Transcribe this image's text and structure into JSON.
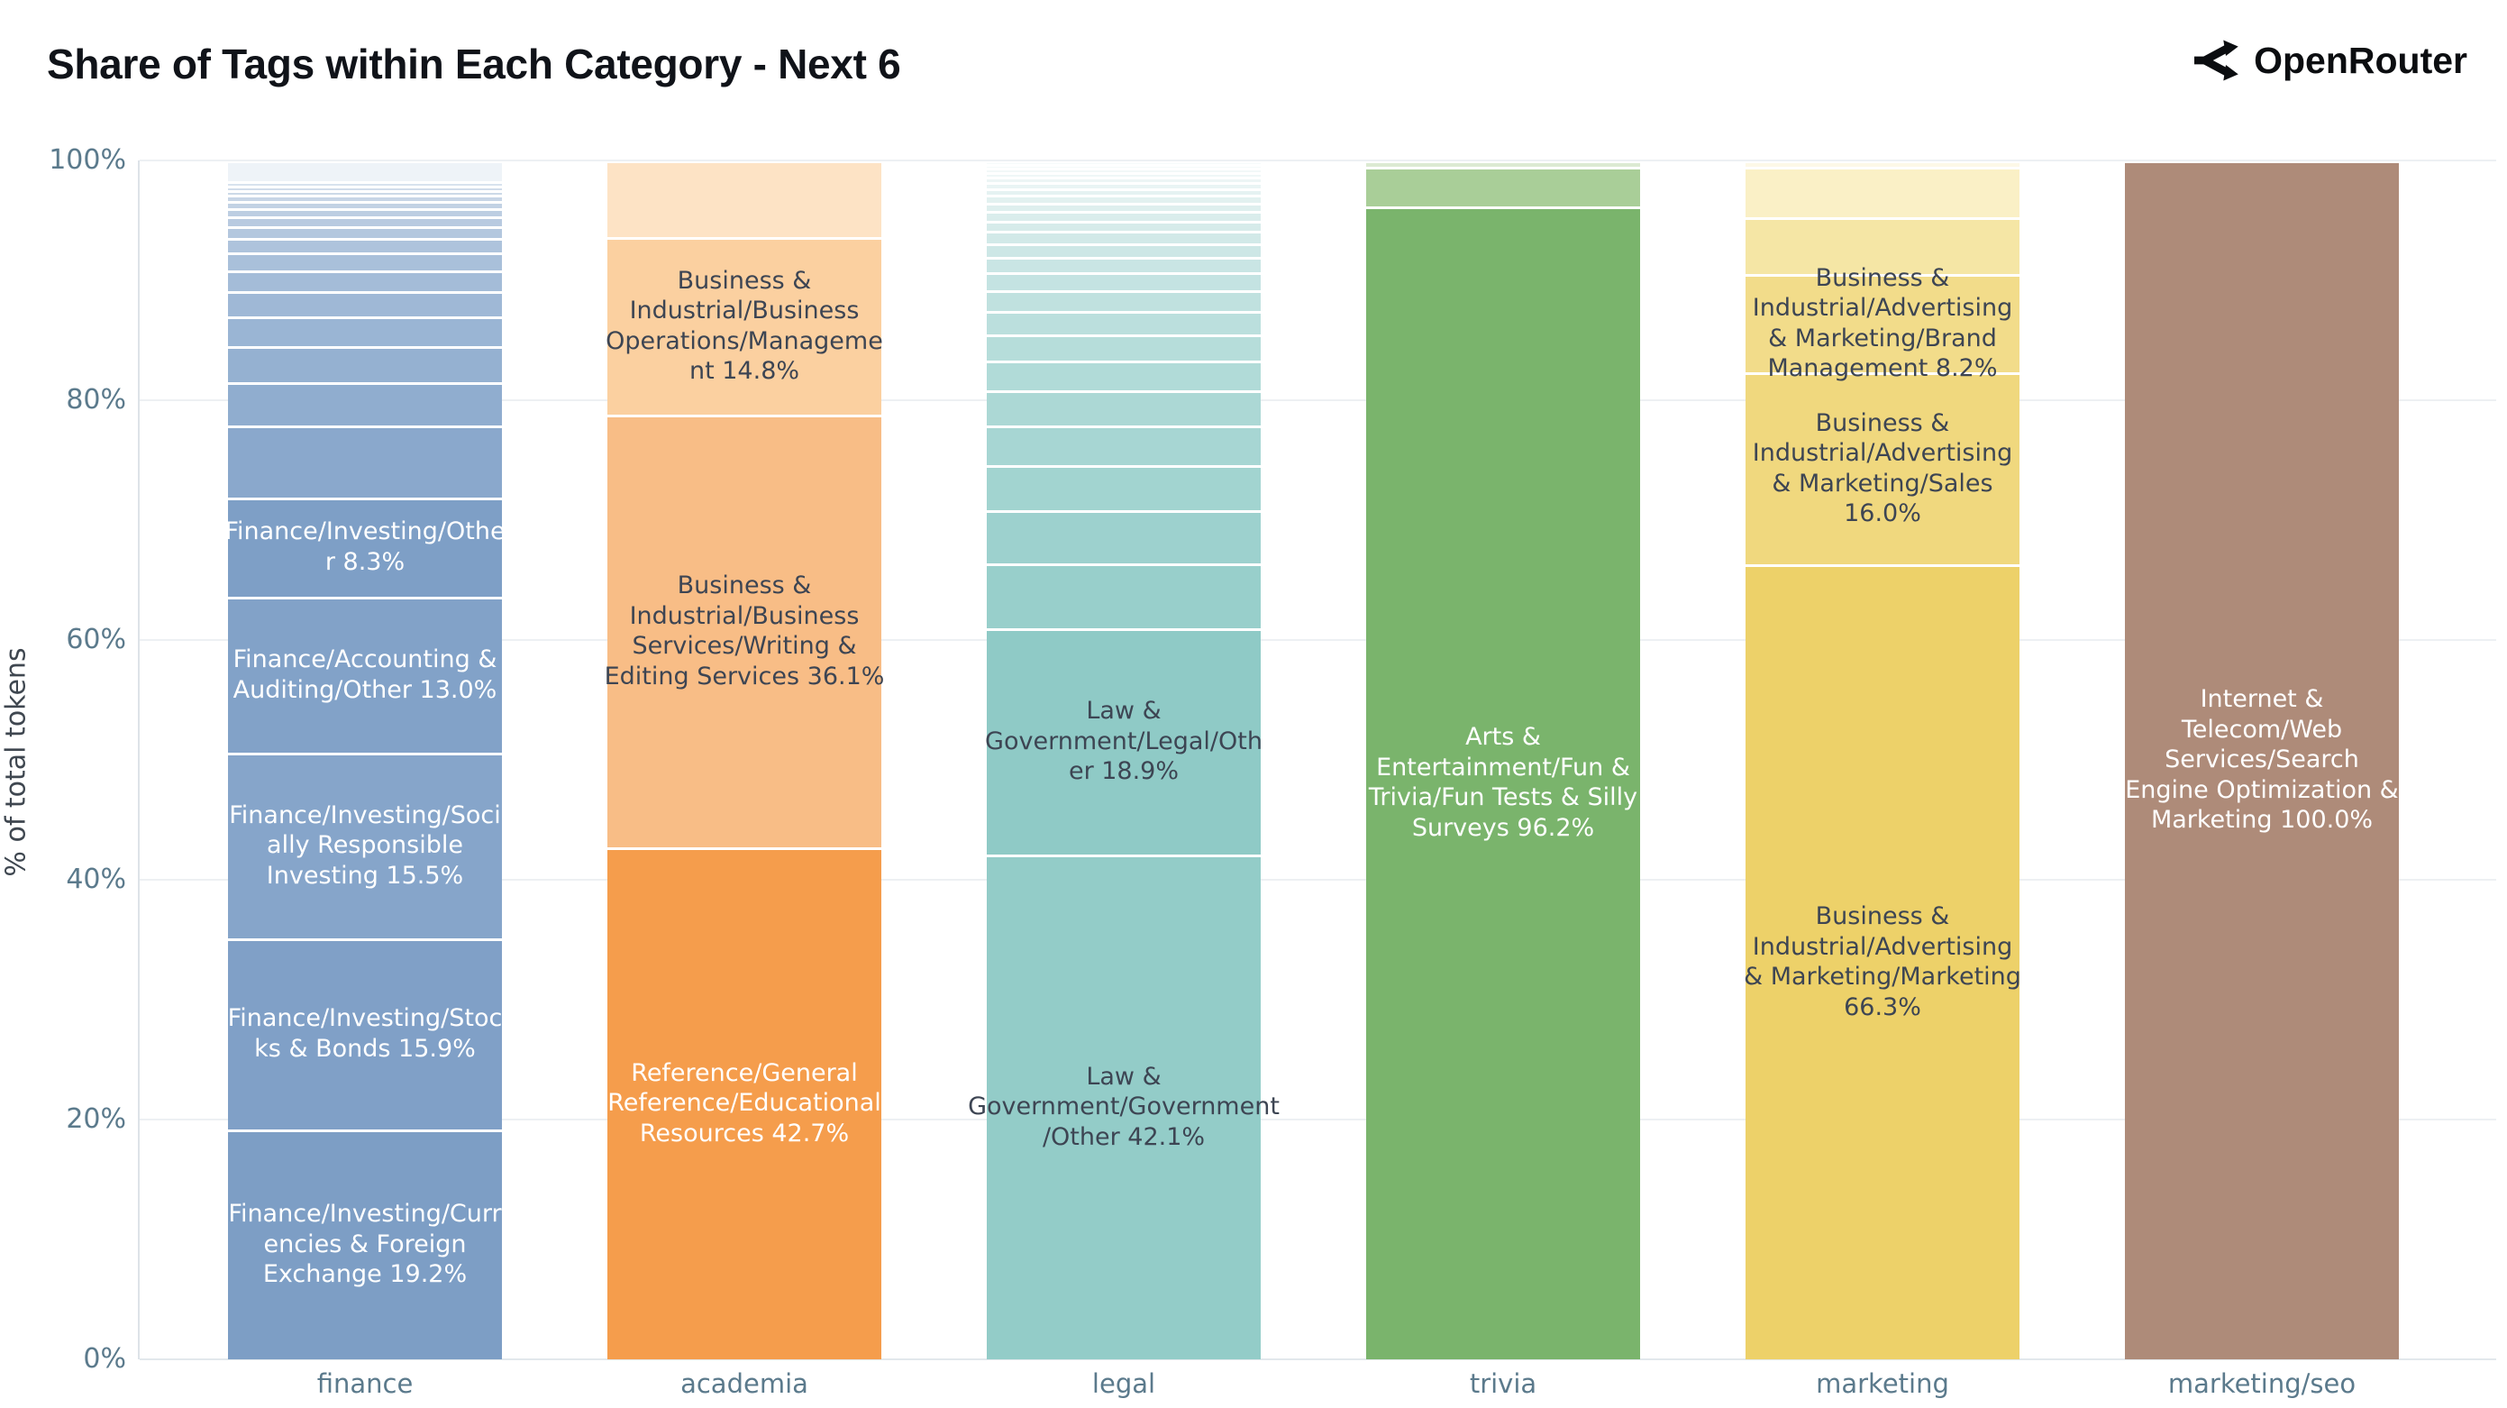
{
  "header": {
    "title": "Share of Tags within Each Category - Next 6",
    "brand": "OpenRouter"
  },
  "chart_data": {
    "type": "bar",
    "stacked": true,
    "title": "Share of Tags within Each Category - Next 6",
    "xlabel": "",
    "ylabel": "% of total tokens",
    "ylim": [
      0,
      100
    ],
    "grid": true,
    "yticks": [
      {
        "value": 0,
        "label": "0%"
      },
      {
        "value": 20,
        "label": "20%"
      },
      {
        "value": 40,
        "label": "40%"
      },
      {
        "value": 60,
        "label": "60%"
      },
      {
        "value": 80,
        "label": "80%"
      },
      {
        "value": 100,
        "label": "100%"
      }
    ],
    "categories": [
      "finance",
      "academia",
      "legal",
      "trivia",
      "marketing",
      "marketing/seo"
    ],
    "bars": [
      {
        "category": "finance",
        "segments": [
          {
            "label": "Finance/Investing/Currencies & Foreign Exchange 19.2%",
            "value": 19.2,
            "color": "#7d9ec5",
            "text_color": "#ffffff"
          },
          {
            "label": "Finance/Investing/Stocks & Bonds 15.9%",
            "value": 15.9,
            "color": "#80a0c7",
            "text_color": "#ffffff"
          },
          {
            "label": "Finance/Investing/Socially Responsible Investing 15.5%",
            "value": 15.5,
            "color": "#86a5ca",
            "text_color": "#ffffff"
          },
          {
            "label": "Finance/Accounting & Auditing/Other 13.0%",
            "value": 13.0,
            "color": "#82a2c8",
            "text_color": "#ffffff"
          },
          {
            "label": "Finance/Investing/Other 8.3%",
            "value": 8.3,
            "color": "#7e9fc6",
            "text_color": "#ffffff"
          },
          {
            "value": 6.0,
            "color": "#8aa8cc"
          },
          {
            "value": 3.6,
            "color": "#90adcf"
          },
          {
            "value": 3.0,
            "color": "#95b1d1"
          },
          {
            "value": 2.5,
            "color": "#9ab5d4"
          },
          {
            "value": 2.1,
            "color": "#9fb8d6"
          },
          {
            "value": 1.75,
            "color": "#a4bcd8"
          },
          {
            "value": 1.45,
            "color": "#a9c0da"
          },
          {
            "value": 1.2,
            "color": "#aec3dc"
          },
          {
            "value": 1.0,
            "color": "#b3c7de"
          },
          {
            "value": 0.85,
            "color": "#b8cae0"
          },
          {
            "value": 0.7,
            "color": "#bdcee2"
          },
          {
            "value": 0.6,
            "color": "#c2d2e4"
          },
          {
            "value": 0.5,
            "color": "#c7d5e6"
          },
          {
            "value": 0.4,
            "color": "#ccd9e8"
          },
          {
            "value": 0.35,
            "color": "#d1dcea"
          },
          {
            "value": 0.35,
            "color": "#d8e2ee"
          },
          {
            "value": 1.75,
            "color": "#eef3f8"
          }
        ]
      },
      {
        "category": "academia",
        "segments": [
          {
            "label": "Reference/General Reference/Educational Resources 42.7%",
            "value": 42.7,
            "color": "#f59d4c",
            "text_color": "#ffffff"
          },
          {
            "label": "Business & Industrial/Business Services/Writing & Editing Services 36.1%",
            "value": 36.1,
            "color": "#f8bd86",
            "text_color": "#3d4553"
          },
          {
            "label": "Business & Industrial/Business Operations/Management 14.8%",
            "value": 14.8,
            "color": "#fbd0a0",
            "text_color": "#3d4553"
          },
          {
            "value": 6.4,
            "color": "#fde3c5"
          }
        ]
      },
      {
        "category": "legal",
        "segments": [
          {
            "label": "Law & Government/Government/Other 42.1%",
            "value": 42.1,
            "color": "#93ccc8",
            "text_color": "#3d4553",
            "label_width": 348
          },
          {
            "label": "Law & Government/Legal/Other 18.9%",
            "value": 18.9,
            "color": "#8fcac6",
            "text_color": "#3d4553"
          },
          {
            "value": 5.4,
            "color": "#98cfcb"
          },
          {
            "value": 4.4,
            "color": "#9dd1ce"
          },
          {
            "value": 3.8,
            "color": "#a2d4d0"
          },
          {
            "value": 3.3,
            "color": "#a7d6d3"
          },
          {
            "value": 2.9,
            "color": "#acd8d5"
          },
          {
            "value": 2.5,
            "color": "#b1dbd8"
          },
          {
            "value": 2.2,
            "color": "#b6ddda"
          },
          {
            "value": 1.95,
            "color": "#bbdfdd"
          },
          {
            "value": 1.7,
            "color": "#c0e1df"
          },
          {
            "value": 1.5,
            "color": "#c4e3e2"
          },
          {
            "value": 1.3,
            "color": "#c9e5e4"
          },
          {
            "value": 1.15,
            "color": "#cde7e6"
          },
          {
            "value": 1.0,
            "color": "#d2e9e8"
          },
          {
            "value": 0.9,
            "color": "#d6ebea"
          },
          {
            "value": 0.8,
            "color": "#daedec"
          },
          {
            "value": 0.7,
            "color": "#deefee"
          },
          {
            "value": 0.65,
            "color": "#e2f1f0"
          },
          {
            "value": 0.55,
            "color": "#e5f2f2"
          },
          {
            "value": 0.5,
            "color": "#e9f4f4"
          },
          {
            "value": 0.45,
            "color": "#ecf5f5"
          },
          {
            "value": 0.4,
            "color": "#eff7f7"
          },
          {
            "value": 0.35,
            "color": "#f2f8f8"
          },
          {
            "value": 0.3,
            "color": "#f4fafa"
          },
          {
            "value": 0.3,
            "color": "#f6fbfb"
          }
        ]
      },
      {
        "category": "trivia",
        "segments": [
          {
            "label": "Arts & Entertainment/Fun & Trivia/Fun Tests & Silly Surveys 96.2%",
            "value": 96.2,
            "color": "#7ab46c",
            "text_color": "#ffffff"
          },
          {
            "value": 3.3,
            "color": "#a9ce98"
          },
          {
            "value": 0.5,
            "color": "#dcead2"
          }
        ]
      },
      {
        "category": "marketing",
        "segments": [
          {
            "label": "Business & Industrial/Advertising & Marketing/Marketing 66.3%",
            "value": 66.3,
            "color": "#edd169",
            "text_color": "#3d4553"
          },
          {
            "label": "Business & Industrial/Advertising & Marketing/Sales 16.0%",
            "value": 16.0,
            "color": "#f0d87e",
            "text_color": "#3d4553"
          },
          {
            "label": "Business & Industrial/Advertising & Marketing/Brand Management 8.2%",
            "value": 8.2,
            "color": "#f2dc8a",
            "text_color": "#3d4553"
          },
          {
            "value": 4.8,
            "color": "#f5e6a5"
          },
          {
            "value": 4.2,
            "color": "#faf0c6"
          },
          {
            "value": 0.5,
            "color": "#fdf8e7"
          }
        ]
      },
      {
        "category": "marketing/seo",
        "segments": [
          {
            "label": "Internet & Telecom/Web Services/Search Engine Optimization & Marketing 100.0%",
            "value": 100.0,
            "color": "#ae8b79",
            "text_color": "#ffffff"
          }
        ]
      }
    ]
  }
}
